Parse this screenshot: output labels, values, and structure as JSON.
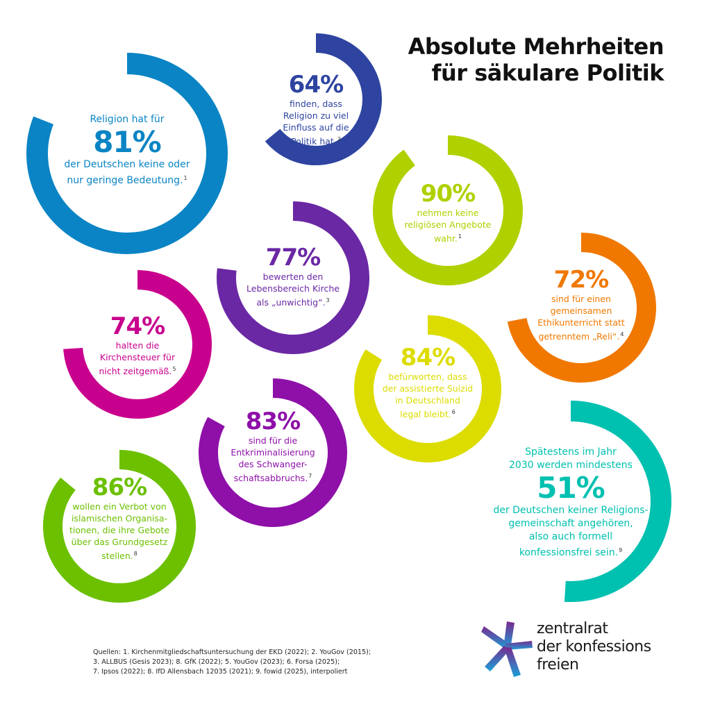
{
  "title": {
    "line1": "Absolute Mehrheiten",
    "line2": "für säkulare Politik"
  },
  "stats": [
    {
      "id": "religion-bedeutung",
      "percent": 81,
      "color": "#0a84c4",
      "pre": "Religion hat für",
      "value": "81%",
      "text": "der Deutschen keine oder nur geringe Bedeutung.",
      "footnote": "1"
    },
    {
      "id": "einfluss-politik",
      "percent": 64,
      "color": "#2e44a0",
      "pre": "",
      "value": "64%",
      "text": "finden, dass Religion zu viel Einfluss auf die Politik hat.",
      "footnote": "2"
    },
    {
      "id": "religioese-angebote",
      "percent": 90,
      "color": "#b0d000",
      "pre": "",
      "value": "90%",
      "text": "nehmen keine religiösen Angebote wahr.",
      "footnote": "1"
    },
    {
      "id": "kirche-unwichtig",
      "percent": 77,
      "color": "#6a28a4",
      "pre": "",
      "value": "77%",
      "text": "bewerten den Lebensbereich Kirche als „unwichtig“.",
      "footnote": "3"
    },
    {
      "id": "ethikunterricht",
      "percent": 72,
      "color": "#f07800",
      "pre": "",
      "value": "72%",
      "text": "sind für einen gemeinsamen Ethikunterricht statt getrenntem „Reli“.",
      "footnote": "4"
    },
    {
      "id": "kirchensteuer",
      "percent": 74,
      "color": "#c8008e",
      "pre": "",
      "value": "74%",
      "text": "halten die Kirchensteuer für nicht zeitgemäß.",
      "footnote": "5"
    },
    {
      "id": "assistierter-suizid",
      "percent": 84,
      "color": "#dcdc00",
      "pre": "",
      "value": "84%",
      "text": "befürworten, dass der assistierte Suizid in Deutschland legal bleibt.",
      "footnote": "6"
    },
    {
      "id": "schwangerschaftsabbruch",
      "percent": 83,
      "color": "#8e10a8",
      "pre": "",
      "value": "83%",
      "text": "sind für die Entkriminalisierung des Schwangerschaftsabbruchs.",
      "footnote": "7"
    },
    {
      "id": "verbot-organisationen",
      "percent": 86,
      "color": "#6cc000",
      "pre": "",
      "value": "86%",
      "text": "wollen ein Verbot von islamischen Organisationen, die ihre Gebote über das Grundgesetz stellen.",
      "footnote": "8"
    },
    {
      "id": "konfessionsfrei-2030",
      "percent": 51,
      "color": "#00c0b0",
      "pre": "Spätestens im Jahr 2030 werden mindestens",
      "value": "51%",
      "text": "der Deutschen keiner Religionsgemeinschaft angehören, also auch formell konfessionsfrei sein.",
      "footnote": "9"
    }
  ],
  "stat_lines": {
    "religion-bedeutung": {
      "pre": [
        "Religion hat für"
      ],
      "lines": [
        "der Deutschen keine oder",
        "nur geringe Bedeutung."
      ]
    },
    "einfluss-politik": {
      "pre": [],
      "lines": [
        "finden, dass",
        "Religion zu viel",
        "Einfluss auf die",
        "Politik hat."
      ]
    },
    "religioese-angebote": {
      "pre": [],
      "lines": [
        "nehmen keine",
        "religiösen Angebote",
        "wahr."
      ]
    },
    "kirche-unwichtig": {
      "pre": [],
      "lines": [
        "bewerten den",
        "Lebensbereich Kirche",
        "als „unwichtig“."
      ]
    },
    "ethikunterricht": {
      "pre": [],
      "lines": [
        "sind für einen",
        "gemeinsamen",
        "Ethikunterricht statt",
        "getrenntem „Reli“."
      ]
    },
    "kirchensteuer": {
      "pre": [],
      "lines": [
        "halten die",
        "Kirchensteuer für",
        "nicht zeitgemäß."
      ]
    },
    "assistierter-suizid": {
      "pre": [],
      "lines": [
        "befürworten, dass",
        "der assistierte Suizid",
        "in Deutschland",
        "legal bleibt."
      ]
    },
    "schwangerschaftsabbruch": {
      "pre": [],
      "lines": [
        "sind für die",
        "Entkriminalisierung",
        "des Schwanger-",
        "schaftsabbruchs."
      ]
    },
    "verbot-organisationen": {
      "pre": [],
      "lines": [
        "wollen ein Verbot von",
        "islamischen Organisa-",
        "tionen, die ihre Gebote",
        "über das Grundgesetz",
        "stellen."
      ]
    },
    "konfessionsfrei-2030": {
      "pre": [
        "Spätestens im Jahr",
        "2030 werden mindestens"
      ],
      "lines": [
        "der Deutschen keiner Religions-",
        "gemeinschaft angehören,",
        "also auch formell",
        "konfessionsfrei sein."
      ]
    }
  },
  "sources": {
    "line1": "Quellen: 1. Kirchenmitgliedschaftsuntersuchung der EKD (2022); 2. YouGov (2015);",
    "line2": "3. ALLBUS (Gesis 2023); 8. GfK (2022); 5. YouGov (2023); 6. Forsa (2025);",
    "line3": "7. Ipsos (2022); 8. IfD Allensbach 12035 (2021); 9. fowid (2025), interpoliert"
  },
  "logo": {
    "line1": "zentralrat",
    "line2": "der konfessions",
    "line3": "freien",
    "colors": [
      "#7a2a8e",
      "#1aa0d8"
    ]
  }
}
